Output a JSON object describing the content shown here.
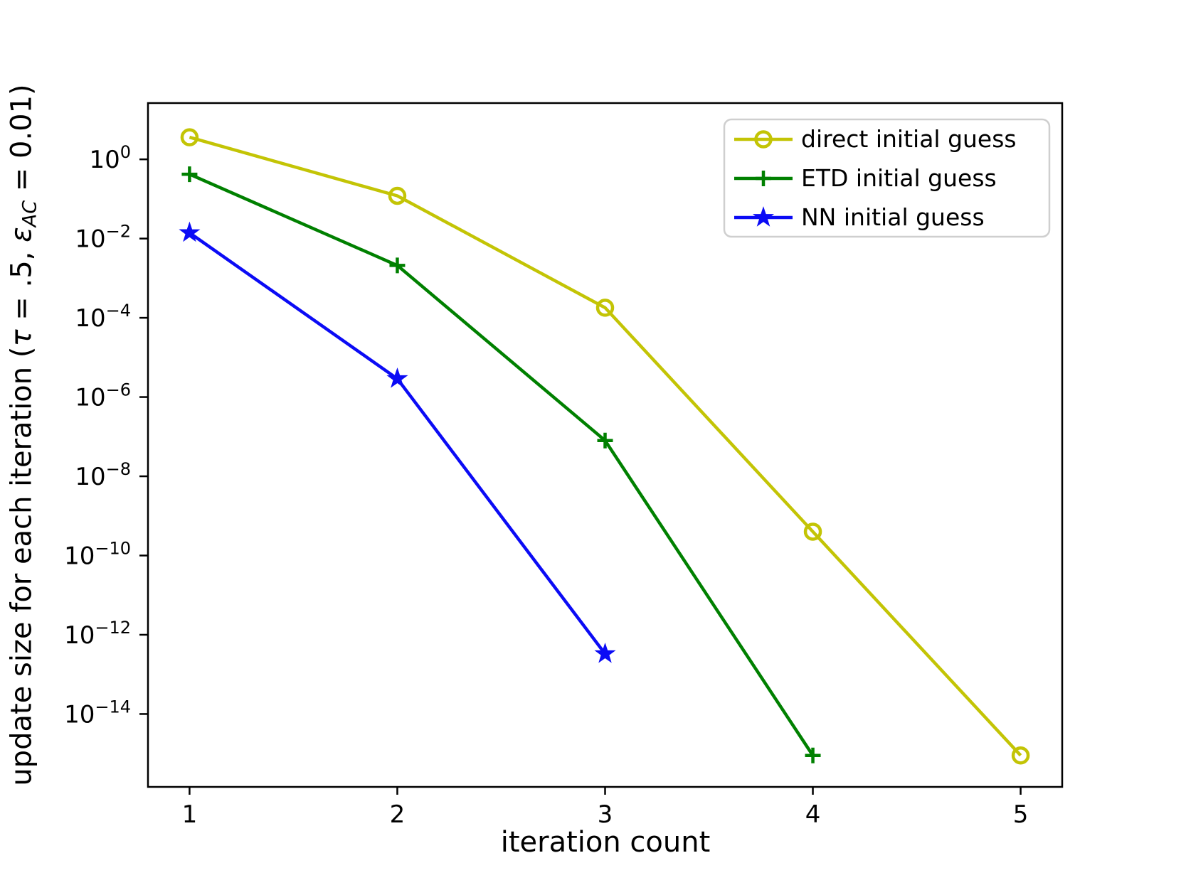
{
  "chart_data": {
    "type": "line",
    "xlabel": "iteration count",
    "ylabel_plain": "update size for each iteration (τ = .5, εAC = 0.01)",
    "ylabel_parts": [
      {
        "t": "update size for each iteration (",
        "style": "normal"
      },
      {
        "t": "τ",
        "style": "italic"
      },
      {
        "t": " = .5, ",
        "style": "normal"
      },
      {
        "t": "ε",
        "style": "italic"
      },
      {
        "t": "AC",
        "style": "sub"
      },
      {
        "t": " = 0.01)",
        "style": "normal"
      }
    ],
    "x_ticks": [
      1,
      2,
      3,
      4,
      5
    ],
    "y_tick_exponents": [
      0,
      -2,
      -4,
      -6,
      -8,
      -10,
      -12,
      -14
    ],
    "xlim": [
      0.8,
      5.2
    ],
    "ylim_log10": [
      -15.84,
      1.42
    ],
    "grid": false,
    "legend_position": "upper right",
    "axis_color": "#000000",
    "legend_border_color": "#cfcfcf",
    "series": [
      {
        "name": "direct initial guess",
        "marker": "circle",
        "color": "#c3c405",
        "x": [
          1,
          2,
          3,
          4,
          5
        ],
        "values": [
          3.6,
          0.12,
          0.00018,
          4e-10,
          9e-16
        ]
      },
      {
        "name": "ETD initial guess",
        "marker": "plus",
        "color": "#008000",
        "x": [
          1,
          2,
          3,
          4
        ],
        "values": [
          0.42,
          0.0021,
          8e-08,
          9e-16
        ]
      },
      {
        "name": "NN initial guess",
        "marker": "star",
        "color": "#0b0bf5",
        "x": [
          1,
          2,
          3
        ],
        "values": [
          0.014,
          2.9e-06,
          3.3e-13
        ]
      }
    ]
  }
}
